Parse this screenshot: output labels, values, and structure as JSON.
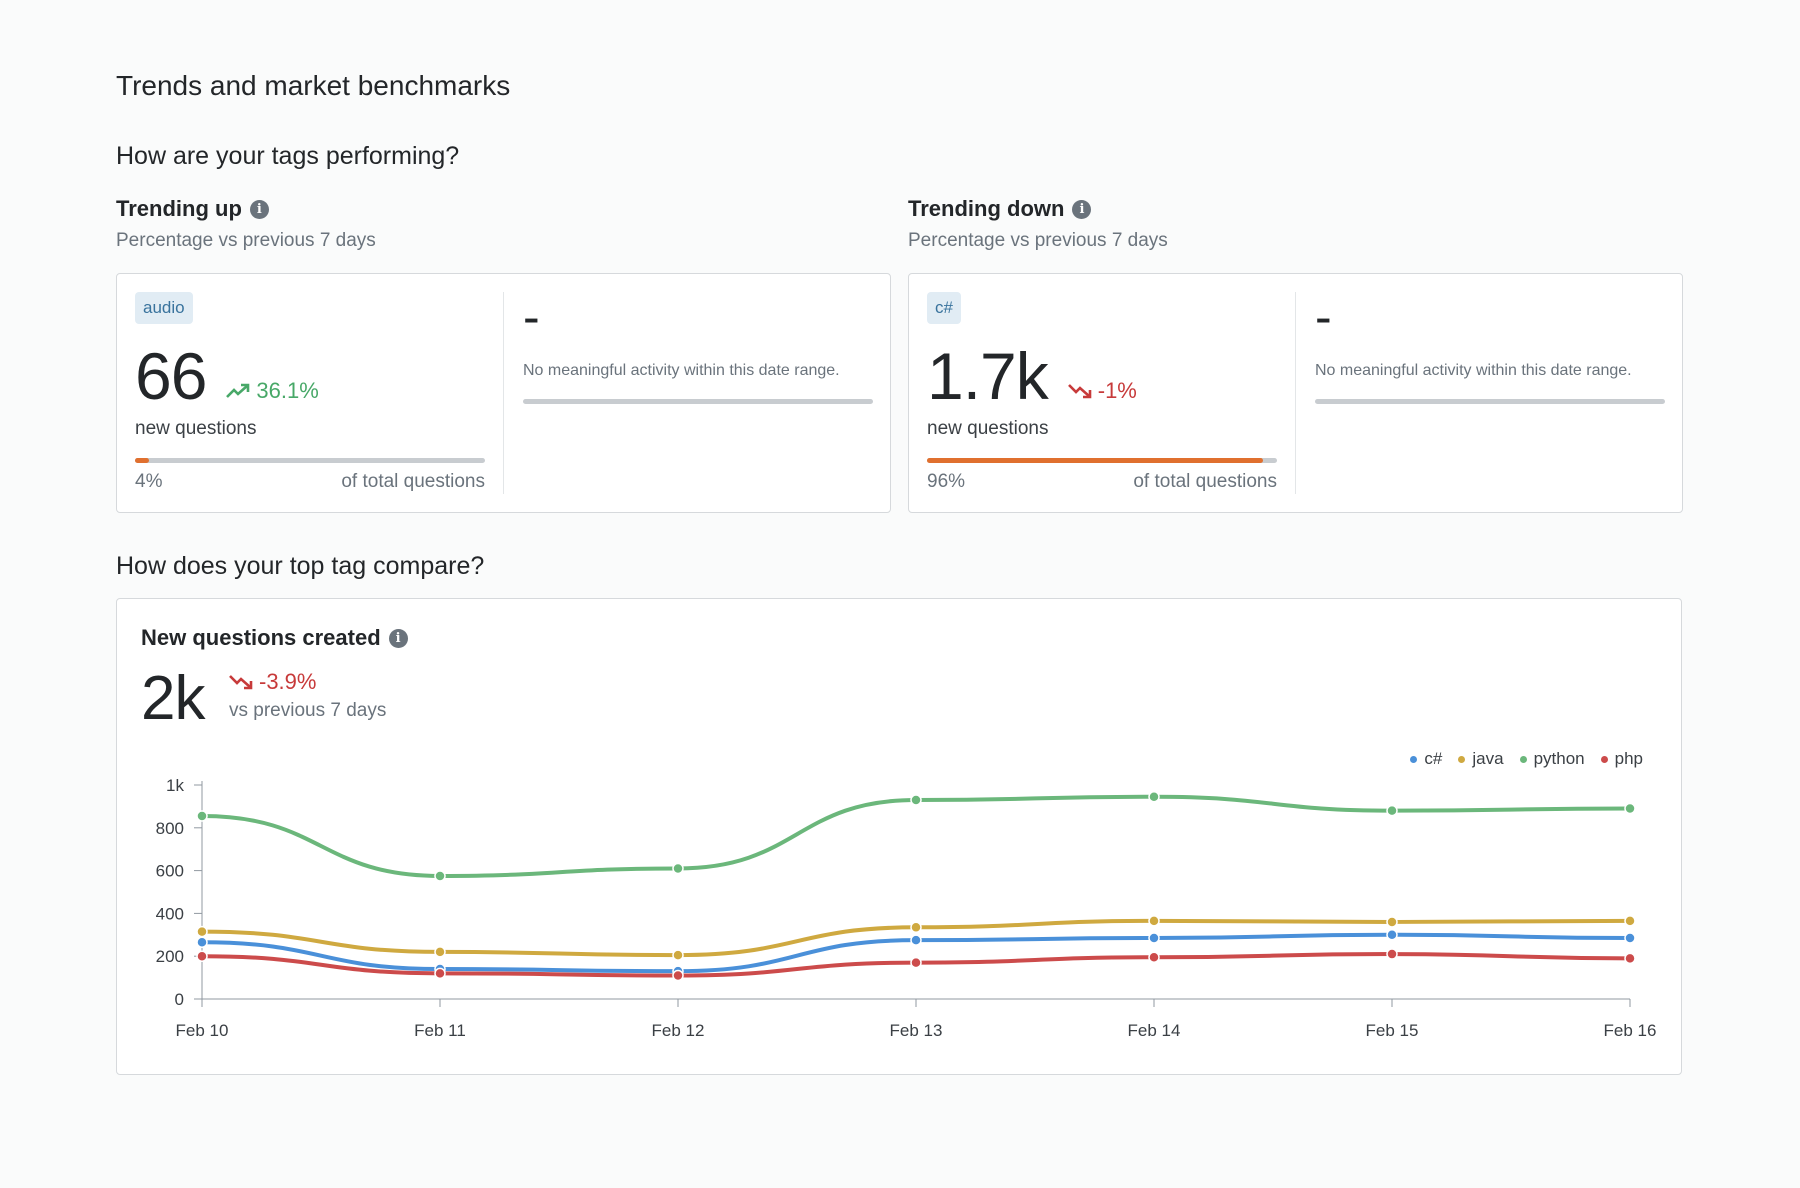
{
  "page": {
    "title": "Trends and market benchmarks"
  },
  "sections": {
    "tags_performing": "How are your tags performing?",
    "top_tag_compare": "How does your top tag compare?"
  },
  "trending_up": {
    "title": "Trending up",
    "subtitle": "Percentage vs previous 7 days",
    "primary": {
      "tag": "audio",
      "value": "66",
      "delta": "36.1%",
      "caption": "new questions",
      "share_pct": "4%",
      "share_fraction": 0.04,
      "share_label": "of total questions"
    },
    "secondary": {
      "value": "-",
      "message": "No meaningful activity within this date range."
    }
  },
  "trending_down": {
    "title": "Trending down",
    "subtitle": "Percentage vs previous 7 days",
    "primary": {
      "tag": "c#",
      "value": "1.7k",
      "delta": "-1%",
      "caption": "new questions",
      "share_pct": "96%",
      "share_fraction": 0.96,
      "share_label": "of total questions"
    },
    "secondary": {
      "value": "-",
      "message": "No meaningful activity within this date range."
    }
  },
  "chart": {
    "title": "New questions created",
    "value": "2k",
    "delta": "-3.9%",
    "vs_label": "vs previous 7 days"
  },
  "colors": {
    "c#": "#4a90d9",
    "java": "#cfa940",
    "python": "#6bb77b",
    "php": "#cc4b4b",
    "up": "#48a868",
    "down": "#c73a3a",
    "bar": "#e0702f"
  },
  "icons": {
    "info": "info-icon",
    "trend_up": "trend-up-icon",
    "trend_down": "trend-down-icon"
  },
  "chart_data": {
    "type": "line",
    "title": "New questions created",
    "xlabel": "",
    "ylabel": "",
    "categories": [
      "Feb 10",
      "Feb 11",
      "Feb 12",
      "Feb 13",
      "Feb 14",
      "Feb 15",
      "Feb 16"
    ],
    "ylim": [
      0,
      1000
    ],
    "yticks": [
      0,
      200,
      400,
      600,
      800,
      1000
    ],
    "ytick_labels": [
      "0",
      "200",
      "400",
      "600",
      "800",
      "1k"
    ],
    "grid": false,
    "legend": "top-right",
    "series": [
      {
        "name": "c#",
        "values": [
          265,
          140,
          130,
          275,
          285,
          300,
          285
        ]
      },
      {
        "name": "java",
        "values": [
          315,
          220,
          205,
          335,
          365,
          360,
          365
        ]
      },
      {
        "name": "python",
        "values": [
          855,
          575,
          610,
          930,
          945,
          880,
          890
        ]
      },
      {
        "name": "php",
        "values": [
          200,
          120,
          110,
          170,
          195,
          210,
          190
        ]
      }
    ]
  }
}
